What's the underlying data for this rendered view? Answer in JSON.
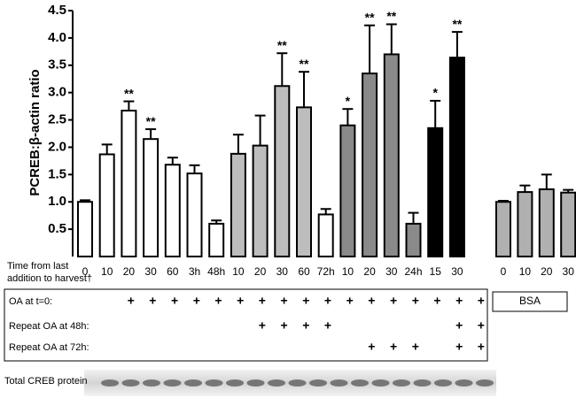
{
  "chart_data": {
    "type": "bar",
    "y_label": "PCREB:β-actin ratio",
    "x_label_lines": [
      "Time from last",
      "addition to harvest†"
    ],
    "categories": [
      "0",
      "10",
      "20",
      "30",
      "60",
      "3h",
      "48h",
      "10",
      "20",
      "30",
      "60",
      "72h",
      "10",
      "20",
      "30",
      "24h",
      "15",
      "30",
      "0",
      "10",
      "20",
      "30"
    ],
    "values": [
      1.0,
      1.87,
      2.67,
      2.15,
      1.68,
      1.52,
      0.6,
      1.88,
      2.03,
      3.12,
      2.73,
      0.77,
      2.4,
      3.35,
      3.7,
      0.6,
      2.35,
      3.64,
      1.0,
      1.18,
      1.23,
      1.17
    ],
    "errors": [
      0.03,
      0.18,
      0.17,
      0.18,
      0.13,
      0.15,
      0.06,
      0.35,
      0.55,
      0.6,
      0.65,
      0.1,
      0.3,
      0.88,
      0.55,
      0.2,
      0.5,
      0.47,
      0.02,
      0.12,
      0.27,
      0.05
    ],
    "significance": [
      null,
      null,
      "**",
      "**",
      null,
      null,
      null,
      null,
      null,
      "**",
      "**",
      null,
      "*",
      "**",
      "**",
      null,
      "*",
      "**",
      null,
      null,
      null,
      null
    ],
    "colors": [
      "#ffffff",
      "#ffffff",
      "#ffffff",
      "#ffffff",
      "#ffffff",
      "#ffffff",
      "#ffffff",
      "#bdbdbd",
      "#bdbdbd",
      "#bdbdbd",
      "#bdbdbd",
      "#ffffff",
      "#8a8a8a",
      "#8a8a8a",
      "#8a8a8a",
      "#8a8a8a",
      "#000000",
      "#000000",
      "#b0b0b0",
      "#b0b0b0",
      "#b0b0b0",
      "#b0b0b0"
    ],
    "ylim": [
      0,
      4.5
    ],
    "yticks": [
      0.5,
      {
        "value": 1,
        "label": "1.0"
      },
      1.5,
      {
        "value": 2,
        "label": "2.0"
      },
      2.5,
      {
        "value": 3,
        "label": "3.0"
      },
      3.5,
      {
        "value": 4,
        "label": "4.0"
      },
      4.5
    ],
    "treatment_rows": [
      {
        "label": "OA at t=0:",
        "marks": [
          null,
          "+",
          "+",
          "+",
          "+",
          "+",
          "+",
          "+",
          "+",
          "+",
          "+",
          "+",
          "+",
          "+",
          "+",
          "+",
          "+",
          "+"
        ]
      },
      {
        "label": "Repeat OA at 48h:",
        "marks": [
          null,
          null,
          null,
          null,
          null,
          null,
          null,
          "+",
          "+",
          "+",
          "+",
          null,
          null,
          null,
          null,
          null,
          "+",
          "+"
        ]
      },
      {
        "label": "Repeat OA at 72h:",
        "marks": [
          null,
          null,
          null,
          null,
          null,
          null,
          null,
          null,
          null,
          null,
          null,
          null,
          "+",
          "+",
          "+",
          null,
          "+",
          "+"
        ]
      }
    ],
    "control_label": "BSA",
    "blot_label": "Total CREB protein"
  }
}
